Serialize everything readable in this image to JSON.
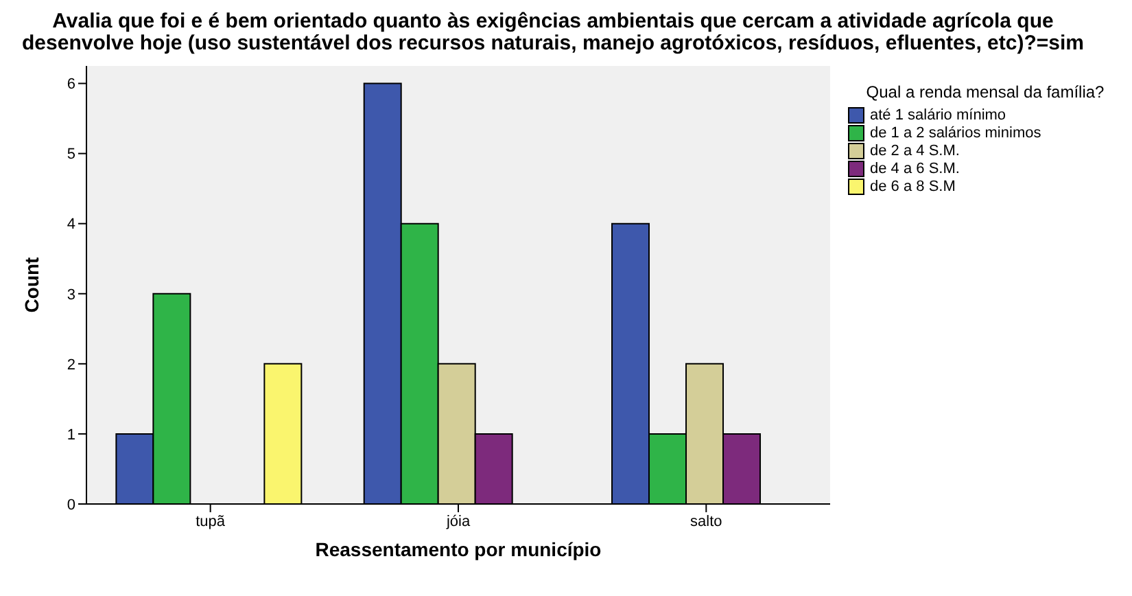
{
  "chart_data": {
    "type": "bar",
    "title": "Avalia que foi e é bem orientado quanto às exigências ambientais que cercam a atividade agrícola que desenvolve hoje (uso sustentável dos recursos naturais, manejo agrotóxicos, resíduos, efluentes, etc)?=sim",
    "xlabel": "Reassentamento por município",
    "ylabel": "Count",
    "legend_title": "Qual a renda mensal da família?",
    "categories": [
      "tupã",
      "jóia",
      "salto"
    ],
    "series": [
      {
        "name": "até 1 salário mínimo",
        "color": "#3e58ac",
        "values": [
          1,
          6,
          4
        ]
      },
      {
        "name": "de 1 a 2 salários minimos",
        "color": "#2fb448",
        "values": [
          3,
          4,
          1
        ]
      },
      {
        "name": "de 2 a 4 S.M.",
        "color": "#d4ce98",
        "values": [
          null,
          2,
          2
        ]
      },
      {
        "name": "de 4 a 6 S.M.",
        "color": "#7d2a7c",
        "values": [
          null,
          1,
          1
        ]
      },
      {
        "name": "de 6 a 8 S.M",
        "color": "#faf56e",
        "values": [
          2,
          null,
          null
        ]
      }
    ],
    "ylim": [
      0,
      6.25
    ],
    "yticks": [
      0,
      1,
      2,
      3,
      4,
      5,
      6
    ],
    "grid": false,
    "legend": "right"
  }
}
